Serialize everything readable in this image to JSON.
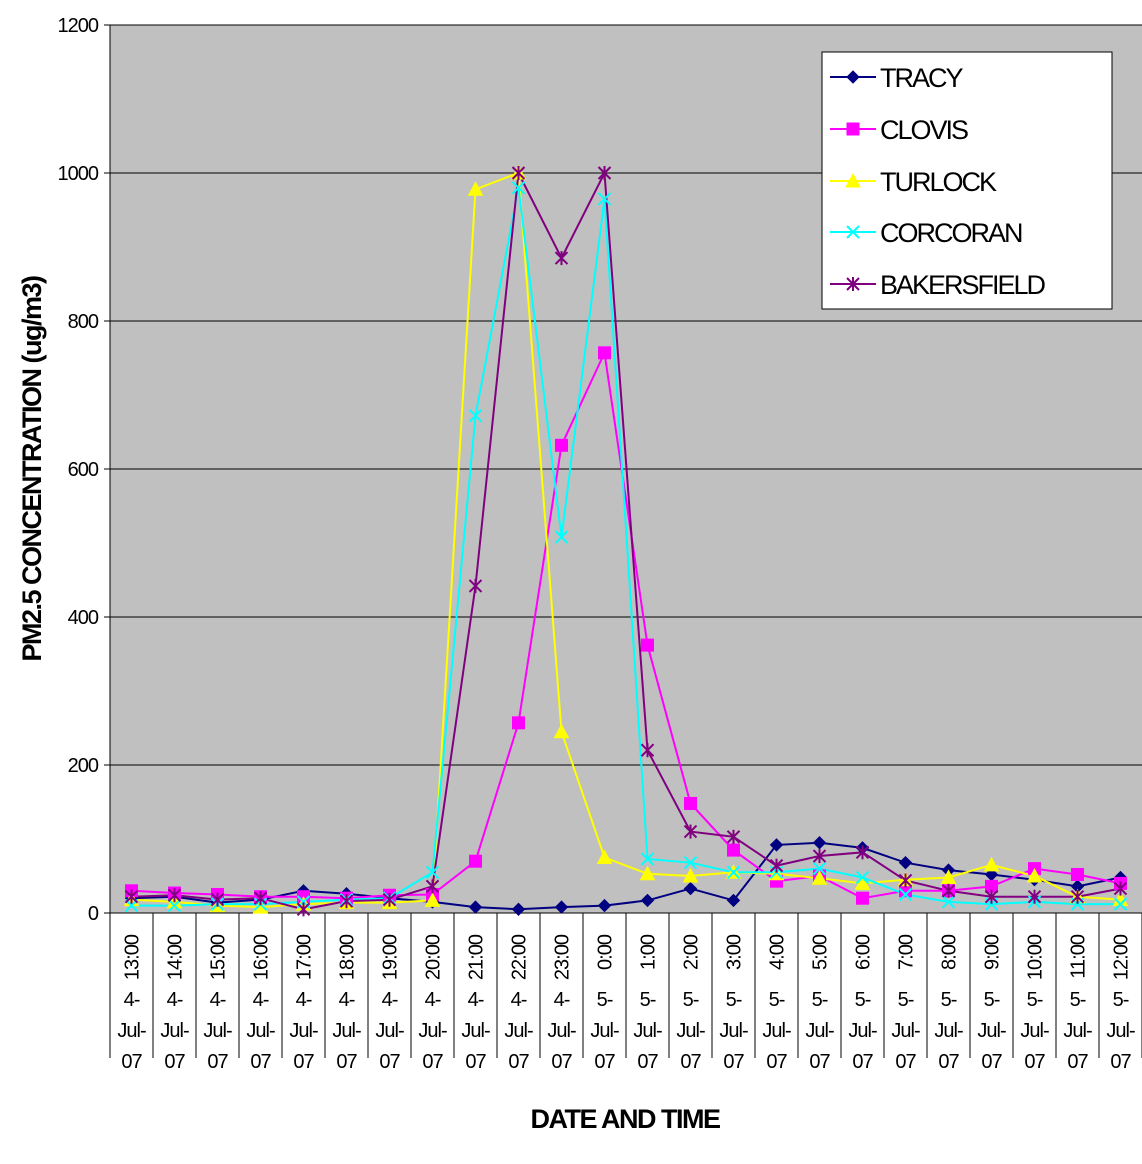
{
  "chart_data": {
    "type": "line",
    "xlabel": "DATE AND TIME",
    "ylabel": "PM2.5 CONCENTRATION (ug/m3)",
    "ylim": [
      0,
      1200
    ],
    "yticks": [
      "0",
      "200",
      "400",
      "600",
      "800",
      "1000",
      "1200"
    ],
    "grid": true,
    "legend_position": "top-right",
    "plot_background": "#c0c0c0",
    "times": [
      "13:00",
      "14:00",
      "15:00",
      "16:00",
      "17:00",
      "18:00",
      "19:00",
      "20:00",
      "21:00",
      "22:00",
      "23:00",
      "0:00",
      "1:00",
      "2:00",
      "3:00",
      "4:00",
      "5:00",
      "6:00",
      "7:00",
      "8:00",
      "9:00",
      "10:00",
      "11:00",
      "12:00"
    ],
    "dates": [
      "4-Jul-07",
      "4-Jul-07",
      "4-Jul-07",
      "4-Jul-07",
      "4-Jul-07",
      "4-Jul-07",
      "4-Jul-07",
      "4-Jul-07",
      "4-Jul-07",
      "4-Jul-07",
      "4-Jul-07",
      "5-Jul-07",
      "5-Jul-07",
      "5-Jul-07",
      "5-Jul-07",
      "5-Jul-07",
      "5-Jul-07",
      "5-Jul-07",
      "5-Jul-07",
      "5-Jul-07",
      "5-Jul-07",
      "5-Jul-07",
      "5-Jul-07",
      "5-Jul-07"
    ],
    "series": [
      {
        "name": "TRACY",
        "color": "#000080",
        "marker": "diamond",
        "values": [
          20,
          22,
          14,
          18,
          30,
          26,
          20,
          15,
          8,
          5,
          8,
          10,
          17,
          33,
          17,
          92,
          95,
          88,
          68,
          58,
          52,
          45,
          36,
          48
        ]
      },
      {
        "name": "CLOVIS",
        "color": "#ff00ff",
        "marker": "square",
        "values": [
          30,
          27,
          25,
          22,
          22,
          20,
          24,
          25,
          70,
          257,
          632,
          757,
          362,
          148,
          85,
          43,
          50,
          20,
          30,
          30,
          36,
          60,
          52,
          40
        ]
      },
      {
        "name": "TURLOCK",
        "color": "#ffff00",
        "marker": "triangle",
        "values": [
          18,
          15,
          10,
          8,
          12,
          14,
          14,
          17,
          978,
          1000,
          245,
          75,
          53,
          50,
          55,
          53,
          47,
          40,
          45,
          48,
          65,
          50,
          22,
          18
        ]
      },
      {
        "name": "CORCORAN",
        "color": "#00ffff",
        "marker": "x",
        "values": [
          10,
          10,
          12,
          12,
          15,
          18,
          20,
          55,
          672,
          980,
          508,
          965,
          73,
          68,
          55,
          55,
          60,
          48,
          25,
          15,
          12,
          15,
          12,
          12
        ]
      },
      {
        "name": "BAKERSFIELD",
        "color": "#800080",
        "marker": "asterisk",
        "values": [
          22,
          24,
          18,
          20,
          5,
          16,
          18,
          36,
          442,
          1000,
          885,
          1000,
          220,
          110,
          103,
          64,
          77,
          82,
          44,
          30,
          22,
          22,
          22,
          33
        ]
      }
    ]
  }
}
